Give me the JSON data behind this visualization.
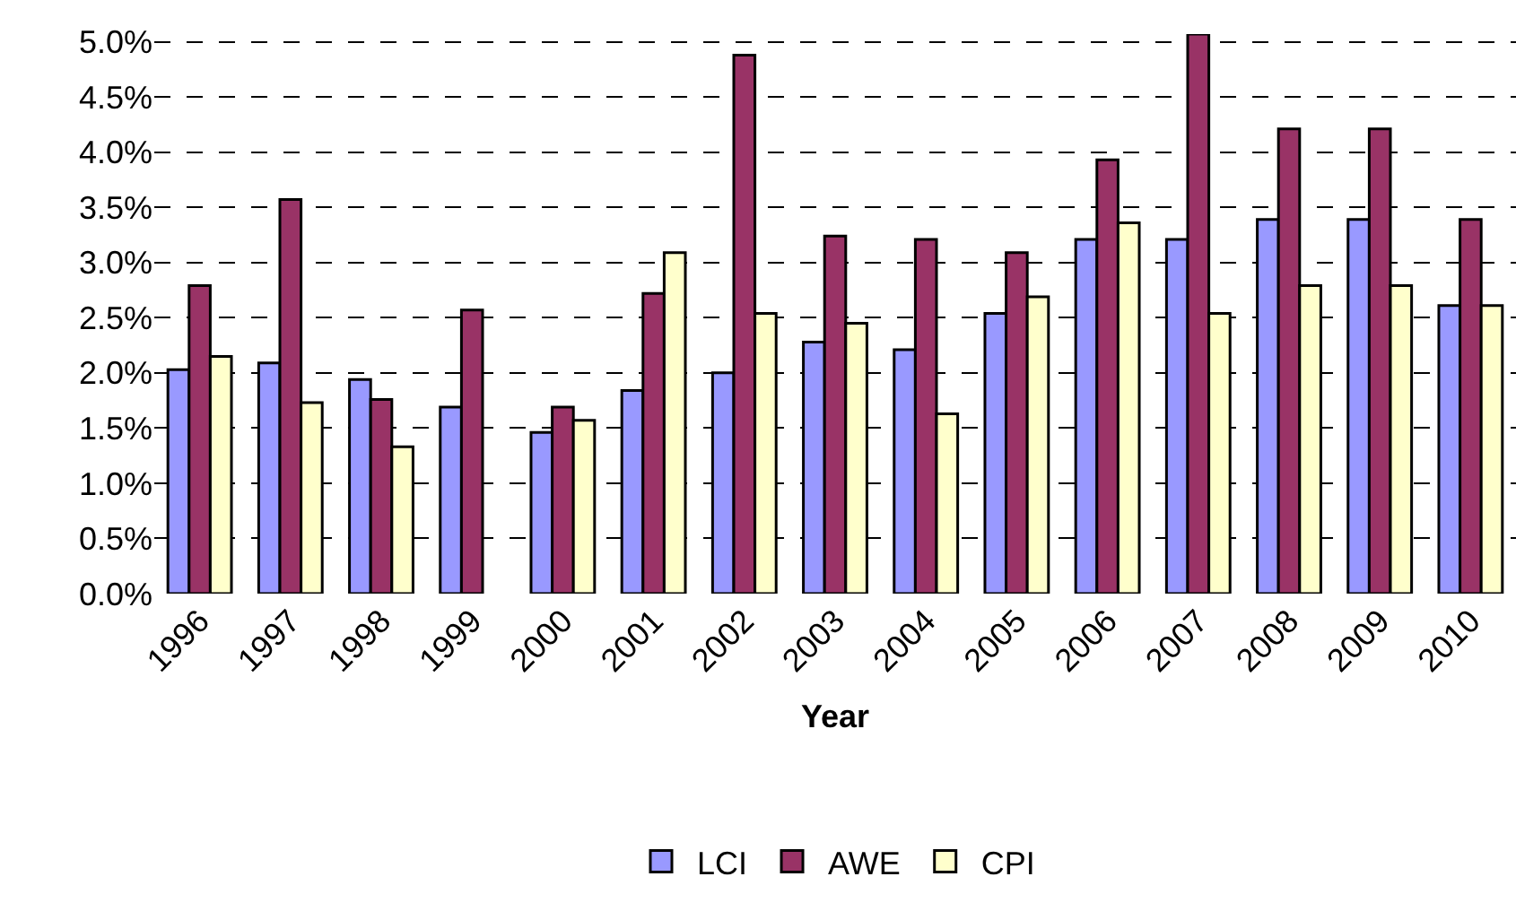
{
  "chart_data": {
    "type": "bar",
    "xlabel": "Year",
    "categories": [
      "1996",
      "1997",
      "1998",
      "1999",
      "2000",
      "2001",
      "2002",
      "2003",
      "2004",
      "2005",
      "2006",
      "2007",
      "2008",
      "2009",
      "2010"
    ],
    "series": [
      {
        "name": "LCI",
        "color": "#9999ff",
        "values": [
          2.03,
          2.09,
          1.94,
          1.69,
          1.46,
          1.84,
          2.0,
          2.28,
          2.21,
          2.54,
          3.21,
          3.21,
          3.39,
          3.39,
          2.61
        ]
      },
      {
        "name": "AWE",
        "color": "#993366",
        "values": [
          2.79,
          3.57,
          1.76,
          2.57,
          1.69,
          2.72,
          4.88,
          3.24,
          3.21,
          3.09,
          3.93,
          5.07,
          4.21,
          4.21,
          3.39
        ]
      },
      {
        "name": "CPI",
        "color": "#ffffcc",
        "values": [
          2.15,
          1.73,
          1.33,
          null,
          1.57,
          3.09,
          2.54,
          2.45,
          1.63,
          2.69,
          3.36,
          2.54,
          2.79,
          2.79,
          2.61
        ]
      }
    ],
    "ylim": [
      0,
      5.07
    ],
    "yticks": [
      {
        "value": 0,
        "label": "0.0%"
      },
      {
        "value": 0.5,
        "label": "0.5%"
      },
      {
        "value": 1,
        "label": "1.0%"
      },
      {
        "value": 1.5,
        "label": "1.5%"
      },
      {
        "value": 2,
        "label": "2.0%"
      },
      {
        "value": 2.5,
        "label": "2.5%"
      },
      {
        "value": 3,
        "label": "3.0%"
      },
      {
        "value": 3.5,
        "label": "3.5%"
      },
      {
        "value": 4,
        "label": "4.0%"
      },
      {
        "value": 4.5,
        "label": "4.5%"
      },
      {
        "value": 5,
        "label": "5.0%"
      }
    ],
    "grid": "y",
    "legend": "bottom"
  }
}
